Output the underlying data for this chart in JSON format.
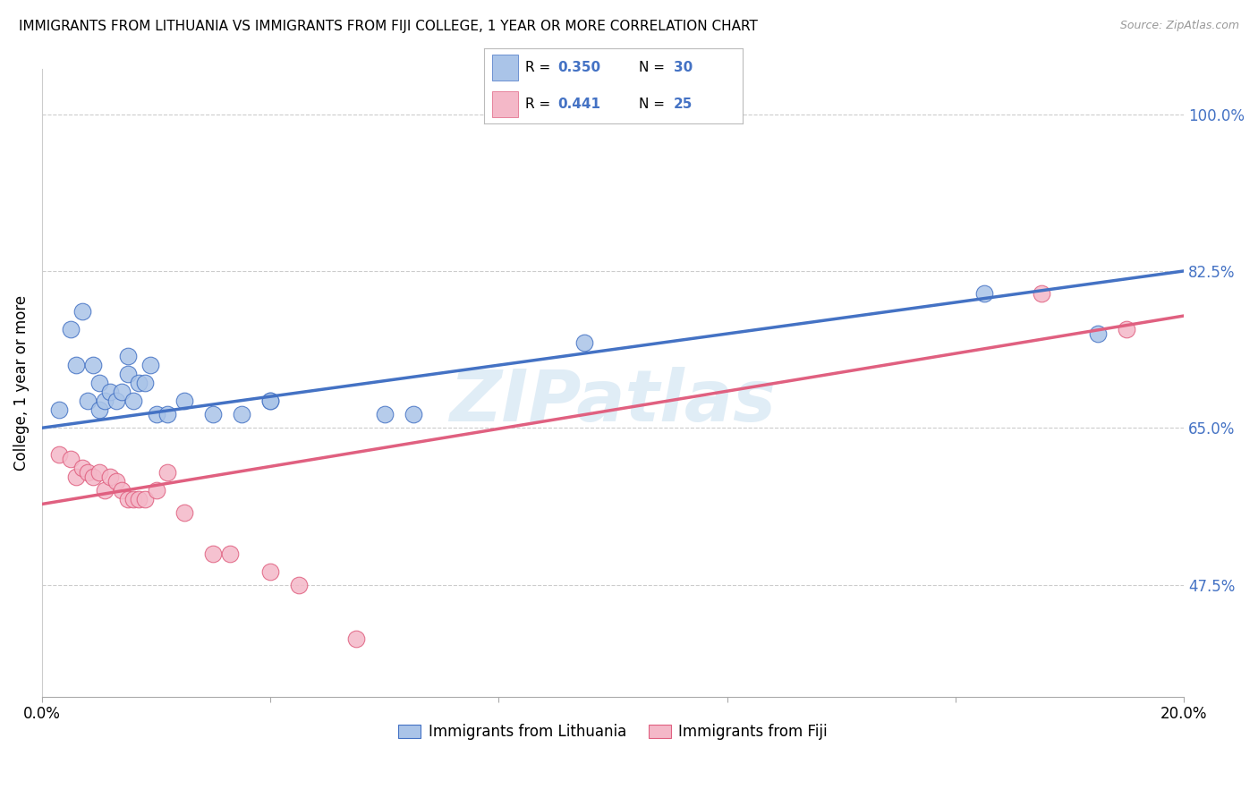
{
  "title": "IMMIGRANTS FROM LITHUANIA VS IMMIGRANTS FROM FIJI COLLEGE, 1 YEAR OR MORE CORRELATION CHART",
  "source": "Source: ZipAtlas.com",
  "ylabel": "College, 1 year or more",
  "xmin": 0.0,
  "xmax": 0.2,
  "ymin": 0.35,
  "ymax": 1.05,
  "yticks": [
    0.475,
    0.65,
    0.825,
    1.0
  ],
  "ytick_labels": [
    "47.5%",
    "65.0%",
    "82.5%",
    "100.0%"
  ],
  "xticks": [
    0.0,
    0.04,
    0.08,
    0.12,
    0.16,
    0.2
  ],
  "xtick_labels": [
    "0.0%",
    "",
    "",
    "",
    "",
    "20.0%"
  ],
  "background_color": "#ffffff",
  "grid_color": "#cccccc",
  "lithuania_color": "#aac4e8",
  "lithuania_line_color": "#4472c4",
  "fiji_color": "#f4b8c8",
  "fiji_line_color": "#e06080",
  "R_lithuania": 0.35,
  "N_lithuania": 30,
  "R_fiji": 0.441,
  "N_fiji": 25,
  "legend_R_color": "#4472c4",
  "watermark": "ZIPatlas",
  "lithuania_intercept": 0.65,
  "lithuania_slope": 0.875,
  "fiji_intercept": 0.565,
  "fiji_slope": 1.05,
  "lithuania_x": [
    0.003,
    0.005,
    0.006,
    0.007,
    0.008,
    0.009,
    0.01,
    0.01,
    0.011,
    0.012,
    0.013,
    0.014,
    0.015,
    0.015,
    0.016,
    0.017,
    0.018,
    0.019,
    0.02,
    0.022,
    0.025,
    0.03,
    0.035,
    0.04,
    0.04,
    0.06,
    0.065,
    0.095,
    0.165,
    0.185
  ],
  "lithuania_y": [
    0.67,
    0.76,
    0.72,
    0.78,
    0.68,
    0.72,
    0.67,
    0.7,
    0.68,
    0.69,
    0.68,
    0.69,
    0.71,
    0.73,
    0.68,
    0.7,
    0.7,
    0.72,
    0.665,
    0.665,
    0.68,
    0.665,
    0.665,
    0.68,
    0.68,
    0.665,
    0.665,
    0.745,
    0.8,
    0.755
  ],
  "fiji_x": [
    0.003,
    0.005,
    0.006,
    0.007,
    0.008,
    0.009,
    0.01,
    0.011,
    0.012,
    0.013,
    0.014,
    0.015,
    0.016,
    0.017,
    0.018,
    0.02,
    0.022,
    0.025,
    0.03,
    0.033,
    0.04,
    0.045,
    0.055,
    0.175,
    0.19
  ],
  "fiji_y": [
    0.62,
    0.615,
    0.595,
    0.605,
    0.6,
    0.595,
    0.6,
    0.58,
    0.595,
    0.59,
    0.58,
    0.57,
    0.57,
    0.57,
    0.57,
    0.58,
    0.6,
    0.555,
    0.51,
    0.51,
    0.49,
    0.475,
    0.415,
    0.8,
    0.76
  ]
}
